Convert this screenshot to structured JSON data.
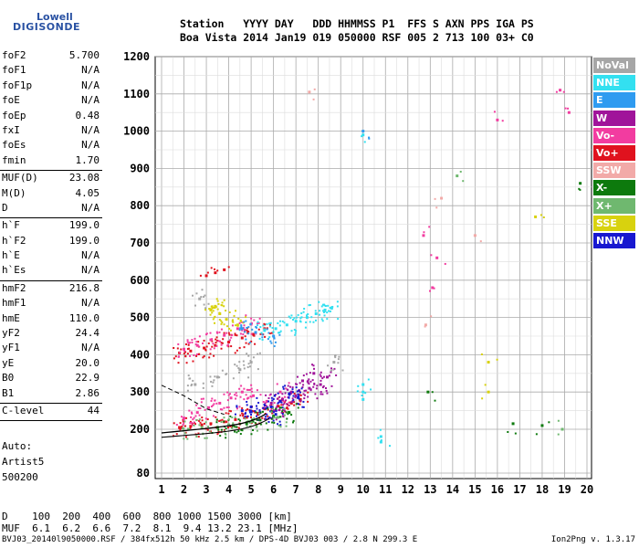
{
  "logo": {
    "line1": "Lowell",
    "line2": "DIGISONDE"
  },
  "header": {
    "row1": "Station   YYYY DAY   DDD HHMMSS P1  FFS S AXN PPS IGA PS",
    "row2": "Boa Vista 2014 Jan19 019 050000 RSF 005 2 713 100 03+ C0"
  },
  "params": [
    {
      "label": "foF2",
      "value": "5.700"
    },
    {
      "label": "foF1",
      "value": "N/A"
    },
    {
      "label": "foF1p",
      "value": "N/A"
    },
    {
      "label": "foE",
      "value": "N/A"
    },
    {
      "label": "foEp",
      "value": "0.48"
    },
    {
      "label": "fxI",
      "value": "N/A"
    },
    {
      "label": "foEs",
      "value": "N/A"
    },
    {
      "label": "fmin",
      "value": "1.70"
    },
    {
      "sep": true
    },
    {
      "label": "MUF(D)",
      "value": "23.08"
    },
    {
      "label": "M(D)",
      "value": "4.05"
    },
    {
      "label": "D",
      "value": "N/A"
    },
    {
      "sep": true
    },
    {
      "label": "h`F",
      "value": "199.0"
    },
    {
      "label": "h`F2",
      "value": "199.0"
    },
    {
      "label": "h`E",
      "value": "N/A"
    },
    {
      "label": "h`Es",
      "value": "N/A"
    },
    {
      "sep": true
    },
    {
      "label": "hmF2",
      "value": "216.8"
    },
    {
      "label": "hmF1",
      "value": "N/A"
    },
    {
      "label": "hmE",
      "value": "110.0"
    },
    {
      "label": "yF2",
      "value": "24.4"
    },
    {
      "label": "yF1",
      "value": "N/A"
    },
    {
      "label": "yE",
      "value": "20.0"
    },
    {
      "label": "B0",
      "value": "22.9"
    },
    {
      "label": "B1",
      "value": "2.86"
    },
    {
      "sep": true
    },
    {
      "label": "C-level",
      "value": "44"
    },
    {
      "sep": true
    }
  ],
  "auto": {
    "line1": "Auto:",
    "line2": "Artist5",
    "line3": "500200"
  },
  "legend": [
    {
      "label": "NoVal",
      "color": "#a6a6a6"
    },
    {
      "label": "NNE",
      "color": "#33e0f0"
    },
    {
      "label": "E",
      "color": "#2f9bf0"
    },
    {
      "label": "W",
      "color": "#a0149a"
    },
    {
      "label": "Vo-",
      "color": "#f23ca0"
    },
    {
      "label": "Vo+",
      "color": "#e0121e"
    },
    {
      "label": "SSW",
      "color": "#f2aaa8"
    },
    {
      "label": "X-",
      "color": "#0d7a0d"
    },
    {
      "label": "X+",
      "color": "#6fb86f"
    },
    {
      "label": "SSE",
      "color": "#d8d20e"
    },
    {
      "label": "NNW",
      "color": "#1818d0"
    }
  ],
  "bottom": {
    "row_d": "D    100  200  400  600  800 1000 1500 3000 [km]",
    "row_muf": "MUF  6.1  6.2  6.6  7.2  8.1  9.4 13.2 23.1 [MHz]"
  },
  "footer": {
    "left": "BVJ03_20140l9050000.RSF / 384fx512h 50 kHz 2.5 km / DPS-4D BVJ03 003 / 2.8 N 299.3 E",
    "right": "Ion2Png v. 1.3.17"
  },
  "chart_data": {
    "type": "scatter",
    "title": "",
    "xlabel": "",
    "ylabel": "",
    "x_ticks": [
      "1",
      "2",
      "3",
      "4",
      "5",
      "6",
      "7",
      "8",
      "9",
      "10",
      "11",
      "12",
      "13",
      "14",
      "15",
      "16",
      "17",
      "18",
      "19",
      "20"
    ],
    "y_ticks": [
      "80",
      "200",
      "300",
      "400",
      "500",
      "600",
      "700",
      "800",
      "900",
      "1000",
      "1100",
      "1200"
    ],
    "xlim": [
      1,
      20
    ],
    "ylim": [
      80,
      1200
    ],
    "grid": true,
    "series": [
      {
        "name": "Vo+",
        "color": "#e0121e",
        "points": [
          [
            1.8,
            205
          ],
          [
            2.3,
            208
          ],
          [
            2.8,
            212
          ],
          [
            3.2,
            215
          ],
          [
            3.8,
            220
          ],
          [
            4.3,
            226
          ],
          [
            4.8,
            232
          ],
          [
            5.3,
            240
          ],
          [
            5.6,
            255
          ],
          [
            6.2,
            262
          ],
          [
            6.8,
            270
          ],
          [
            7.2,
            280
          ],
          [
            1.8,
            405
          ],
          [
            2.3,
            410
          ],
          [
            2.9,
            418
          ],
          [
            3.4,
            425
          ],
          [
            4.0,
            434
          ],
          [
            4.6,
            445
          ],
          [
            5.1,
            455
          ],
          [
            5.6,
            470
          ],
          [
            3.0,
            612
          ],
          [
            3.4,
            620
          ],
          [
            3.8,
            628
          ]
        ]
      },
      {
        "name": "Vo-",
        "color": "#f23ca0",
        "points": [
          [
            2.0,
            230
          ],
          [
            2.6,
            245
          ],
          [
            3.1,
            258
          ],
          [
            3.6,
            270
          ],
          [
            4.1,
            284
          ],
          [
            4.6,
            300
          ],
          [
            5.1,
            290
          ],
          [
            5.7,
            275
          ],
          [
            6.3,
            300
          ],
          [
            2.0,
            415
          ],
          [
            2.6,
            425
          ],
          [
            3.2,
            440
          ],
          [
            3.8,
            452
          ],
          [
            4.4,
            470
          ],
          [
            5.0,
            482
          ],
          [
            12.7,
            720
          ],
          [
            13.3,
            660
          ],
          [
            13.1,
            580
          ],
          [
            16.0,
            1030
          ],
          [
            18.8,
            1110
          ],
          [
            19.2,
            1050
          ]
        ]
      },
      {
        "name": "W",
        "color": "#a0149a",
        "points": [
          [
            6.4,
            280
          ],
          [
            6.8,
            300
          ],
          [
            7.3,
            330
          ],
          [
            7.8,
            350
          ],
          [
            8.1,
            320
          ],
          [
            8.4,
            340
          ],
          [
            7.0,
            290
          ],
          [
            7.6,
            310
          ],
          [
            5.9,
            270
          ],
          [
            6.1,
            250
          ]
        ]
      },
      {
        "name": "NNW",
        "color": "#1818d0",
        "points": [
          [
            5.4,
            245
          ],
          [
            5.9,
            260
          ],
          [
            6.3,
            275
          ],
          [
            6.7,
            295
          ],
          [
            7.1,
            285
          ],
          [
            5.0,
            260
          ],
          [
            4.6,
            250
          ],
          [
            6.1,
            240
          ]
        ]
      },
      {
        "name": "NNE",
        "color": "#33e0f0",
        "points": [
          [
            5.6,
            465
          ],
          [
            6.1,
            470
          ],
          [
            6.6,
            480
          ],
          [
            7.0,
            490
          ],
          [
            7.5,
            500
          ],
          [
            7.9,
            510
          ],
          [
            8.3,
            520
          ],
          [
            8.6,
            525
          ],
          [
            10.0,
            990
          ],
          [
            10.0,
            300
          ],
          [
            10.0,
            320
          ],
          [
            10.8,
            165
          ],
          [
            10.8,
            180
          ],
          [
            10.0,
            280
          ]
        ]
      },
      {
        "name": "SSE",
        "color": "#d8d20e",
        "points": [
          [
            3.2,
            520
          ],
          [
            3.4,
            530
          ],
          [
            3.6,
            510
          ],
          [
            3.9,
            495
          ],
          [
            4.4,
            480
          ],
          [
            15.6,
            300
          ],
          [
            15.6,
            380
          ],
          [
            17.7,
            770
          ]
        ]
      },
      {
        "name": "X-",
        "color": "#0d7a0d",
        "points": [
          [
            3.5,
            205
          ],
          [
            4.2,
            210
          ],
          [
            4.8,
            215
          ],
          [
            5.4,
            225
          ],
          [
            6.0,
            235
          ],
          [
            6.7,
            245
          ],
          [
            12.9,
            300
          ],
          [
            16.7,
            215
          ],
          [
            18.0,
            210
          ],
          [
            19.7,
            860
          ]
        ]
      },
      {
        "name": "X+",
        "color": "#6fb86f",
        "points": [
          [
            2.2,
            200
          ],
          [
            2.8,
            205
          ],
          [
            4.0,
            212
          ],
          [
            5.0,
            220
          ],
          [
            6.2,
            232
          ],
          [
            14.2,
            880
          ],
          [
            18.9,
            200
          ]
        ]
      },
      {
        "name": "E",
        "color": "#2f9bf0",
        "points": [
          [
            4.6,
            470
          ],
          [
            5.2,
            460
          ],
          [
            6.0,
            450
          ],
          [
            10.0,
            1000
          ]
        ]
      },
      {
        "name": "SSW",
        "color": "#f2aaa8",
        "points": [
          [
            7.6,
            1105
          ],
          [
            12.8,
            480
          ],
          [
            13.5,
            820
          ],
          [
            15.0,
            720
          ]
        ]
      },
      {
        "name": "NoVal",
        "color": "#a6a6a6",
        "points": [
          [
            2.5,
            320
          ],
          [
            3.5,
            340
          ],
          [
            4.5,
            360
          ],
          [
            5.0,
            380
          ],
          [
            2.7,
            550
          ],
          [
            8.7,
            380
          ]
        ]
      }
    ],
    "annotations": [
      "model trace curve (black)",
      "dashed E-layer trace"
    ]
  }
}
